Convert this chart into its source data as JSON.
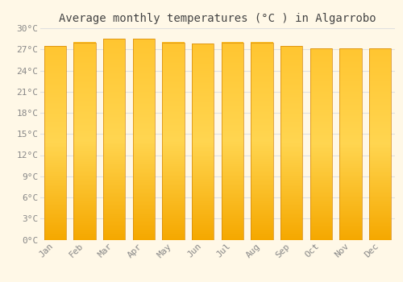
{
  "title": "Average monthly temperatures (°C ) in Algarrobo",
  "months": [
    "Jan",
    "Feb",
    "Mar",
    "Apr",
    "May",
    "Jun",
    "Jul",
    "Aug",
    "Sep",
    "Oct",
    "Nov",
    "Dec"
  ],
  "values": [
    27.5,
    28.0,
    28.5,
    28.5,
    28.0,
    27.8,
    28.0,
    28.0,
    27.5,
    27.2,
    27.2,
    27.2
  ],
  "bar_color_bottom": "#F5A800",
  "bar_color_top": "#FFD966",
  "background_color": "#FFF8E7",
  "grid_color": "#E0E0E0",
  "ylim": [
    0,
    30
  ],
  "yticks": [
    0,
    3,
    6,
    9,
    12,
    15,
    18,
    21,
    24,
    27,
    30
  ],
  "ytick_labels": [
    "0°C",
    "3°C",
    "6°C",
    "9°C",
    "12°C",
    "15°C",
    "18°C",
    "21°C",
    "24°C",
    "27°C",
    "30°C"
  ],
  "title_fontsize": 10,
  "tick_fontsize": 8,
  "font_color": "#888888",
  "title_color": "#444444"
}
